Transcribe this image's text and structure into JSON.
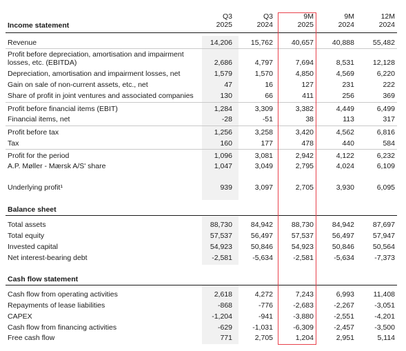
{
  "columns": [
    {
      "line1": "Q3",
      "line2": "2025"
    },
    {
      "line1": "Q3",
      "line2": "2024"
    },
    {
      "line1": "9M",
      "line2": "2025"
    },
    {
      "line1": "9M",
      "line2": "2024"
    },
    {
      "line1": "12M",
      "line2": "2024"
    }
  ],
  "income": {
    "title": "Income statement",
    "revenue": {
      "label": "Revenue",
      "v": [
        "14,206",
        "15,762",
        "40,657",
        "40,888",
        "55,482"
      ]
    },
    "ebitda": {
      "label1": "Profit before depreciation, amortisation and impairment",
      "label2": "losses, etc. (EBITDA)",
      "v": [
        "2,686",
        "4,797",
        "7,694",
        "8,531",
        "12,128"
      ]
    },
    "depreciation": {
      "label": "Depreciation, amortisation and impairment losses, net",
      "v": [
        "1,579",
        "1,570",
        "4,850",
        "4,569",
        "6,220"
      ]
    },
    "gain": {
      "label": "Gain on sale of non-current assets, etc., net",
      "v": [
        "47",
        "16",
        "127",
        "231",
        "222"
      ]
    },
    "share_jv": {
      "label": "Share of profit in joint ventures and associated companies",
      "v": [
        "130",
        "66",
        "411",
        "256",
        "369"
      ]
    },
    "ebit": {
      "label": "Profit before financial items (EBIT)",
      "v": [
        "1,284",
        "3,309",
        "3,382",
        "4,449",
        "6,499"
      ]
    },
    "financial": {
      "label": "Financial items, net",
      "v": [
        "-28",
        "-51",
        "38",
        "113",
        "317"
      ]
    },
    "pbt": {
      "label": "Profit before tax",
      "v": [
        "1,256",
        "3,258",
        "3,420",
        "4,562",
        "6,816"
      ]
    },
    "tax": {
      "label": "Tax",
      "v": [
        "160",
        "177",
        "478",
        "440",
        "584"
      ]
    },
    "profit": {
      "label": "Profit for the period",
      "v": [
        "1,096",
        "3,081",
        "2,942",
        "4,122",
        "6,232"
      ]
    },
    "apm_share": {
      "label": "A.P. Møller - Mærsk A/S' share",
      "v": [
        "1,047",
        "3,049",
        "2,795",
        "4,024",
        "6,109"
      ]
    },
    "underlying": {
      "label": "Underlying profit¹",
      "v": [
        "939",
        "3,097",
        "2,705",
        "3,930",
        "6,095"
      ]
    }
  },
  "balance": {
    "title": "Balance sheet",
    "total_assets": {
      "label": "Total assets",
      "v": [
        "88,730",
        "84,942",
        "88,730",
        "84,942",
        "87,697"
      ]
    },
    "total_equity": {
      "label": "Total equity",
      "v": [
        "57,537",
        "56,497",
        "57,537",
        "56,497",
        "57,947"
      ]
    },
    "invested_capital": {
      "label": "Invested capital",
      "v": [
        "54,923",
        "50,846",
        "54,923",
        "50,846",
        "50,564"
      ]
    },
    "net_debt": {
      "label": "Net interest-bearing debt",
      "v": [
        "-2,581",
        "-5,634",
        "-2,581",
        "-5,634",
        "-7,373"
      ]
    }
  },
  "cashflow": {
    "title": "Cash flow statement",
    "operating": {
      "label": "Cash flow from operating activities",
      "v": [
        "2,618",
        "4,272",
        "7,243",
        "6,993",
        "11,408"
      ]
    },
    "lease": {
      "label": "Repayments of lease liabilities",
      "v": [
        "-868",
        "-776",
        "-2,683",
        "-2,267",
        "-3,051"
      ]
    },
    "capex": {
      "label": "CAPEX",
      "v": [
        "-1,204",
        "-941",
        "-3,880",
        "-2,551",
        "-4,201"
      ]
    },
    "financing": {
      "label": "Cash flow from financing activities",
      "v": [
        "-629",
        "-1,031",
        "-6,309",
        "-2,457",
        "-3,500"
      ]
    },
    "fcf": {
      "label": "Free cash flow",
      "v": [
        "771",
        "2,705",
        "1,204",
        "2,951",
        "5,114"
      ]
    }
  }
}
